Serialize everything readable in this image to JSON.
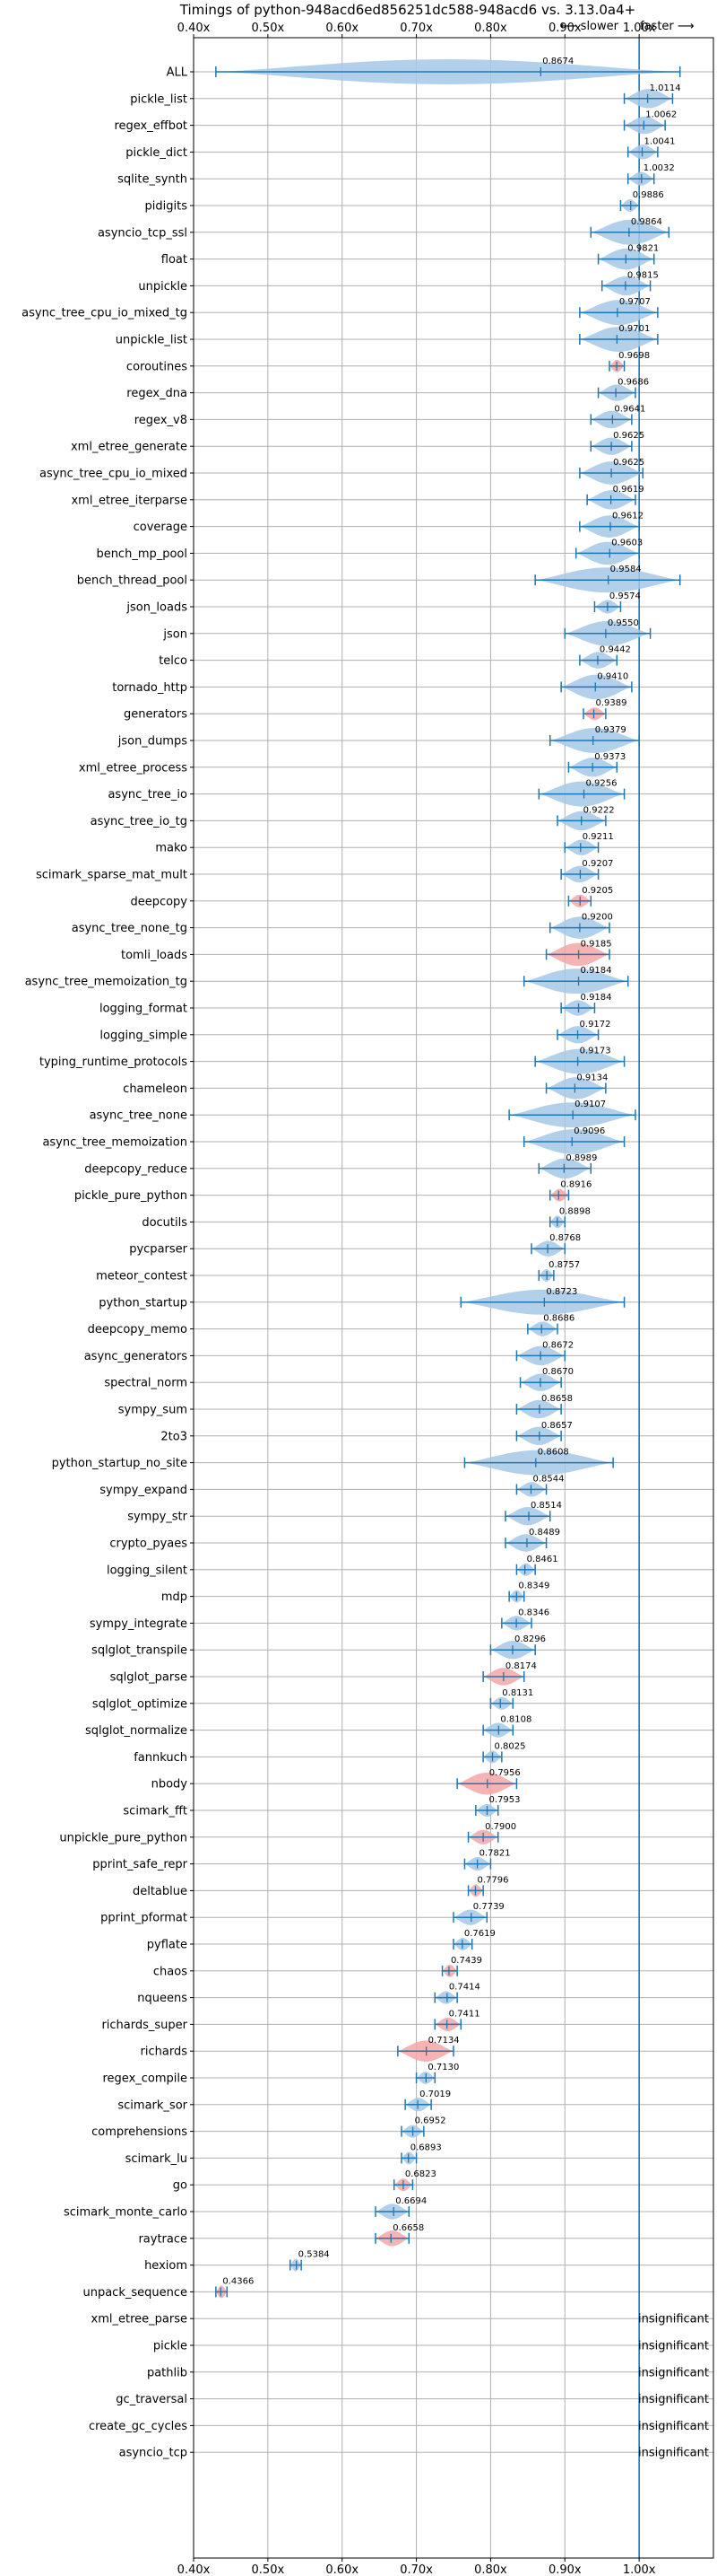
{
  "chart_data": {
    "type": "violin",
    "title": "Timings of python-948acd6ed856251dc588-948acd6 vs. 3.13.0a4+",
    "annotation_slower": "⟵ slower",
    "annotation_faster": "faster ⟶",
    "xlim": [
      0.4,
      1.1
    ],
    "x_ticks": [
      0.4,
      0.5,
      0.6,
      0.7,
      0.8,
      0.9,
      1.0
    ],
    "x_tick_labels": [
      "0.40x",
      "0.50x",
      "0.60x",
      "0.70x",
      "0.80x",
      "0.90x",
      "1.00x"
    ],
    "reference_line": 1.0,
    "grid": true,
    "colors": {
      "violin": "#a6c8e6",
      "violin_significant": "#f4a6a6",
      "whisker": "#1f77b4",
      "grid": "#b0b0b0"
    },
    "insignificant_label": "insignificant",
    "benchmarks": [
      {
        "name": "ALL",
        "geomean": 0.8674,
        "min": 0.43,
        "max": 1.055,
        "label": "0.8674"
      },
      {
        "name": "pickle_list",
        "geomean": 1.0114,
        "min": 0.98,
        "max": 1.045,
        "label": "1.0114"
      },
      {
        "name": "regex_effbot",
        "geomean": 1.0062,
        "min": 0.98,
        "max": 1.035,
        "label": "1.0062"
      },
      {
        "name": "pickle_dict",
        "geomean": 1.0041,
        "min": 0.985,
        "max": 1.025,
        "label": "1.0041"
      },
      {
        "name": "sqlite_synth",
        "geomean": 1.0032,
        "min": 0.985,
        "max": 1.02,
        "label": "1.0032"
      },
      {
        "name": "pidigits",
        "geomean": 0.9886,
        "min": 0.975,
        "max": 1.0,
        "label": "0.9886"
      },
      {
        "name": "asyncio_tcp_ssl",
        "geomean": 0.9864,
        "min": 0.935,
        "max": 1.04,
        "label": "0.9864"
      },
      {
        "name": "float",
        "geomean": 0.9821,
        "min": 0.945,
        "max": 1.02,
        "label": "0.9821"
      },
      {
        "name": "unpickle",
        "geomean": 0.9815,
        "min": 0.95,
        "max": 1.015,
        "label": "0.9815"
      },
      {
        "name": "async_tree_cpu_io_mixed_tg",
        "geomean": 0.9707,
        "min": 0.92,
        "max": 1.025,
        "label": "0.9707"
      },
      {
        "name": "unpickle_list",
        "geomean": 0.9701,
        "min": 0.92,
        "max": 1.025,
        "label": "0.9701"
      },
      {
        "name": "coroutines",
        "geomean": 0.9698,
        "min": 0.96,
        "max": 0.98,
        "label": "0.9698",
        "significant": true
      },
      {
        "name": "regex_dna",
        "geomean": 0.9686,
        "min": 0.945,
        "max": 0.995,
        "label": "0.9686"
      },
      {
        "name": "regex_v8",
        "geomean": 0.9641,
        "min": 0.935,
        "max": 0.99,
        "label": "0.9641"
      },
      {
        "name": "xml_etree_generate",
        "geomean": 0.9625,
        "min": 0.935,
        "max": 0.99,
        "label": "0.9625"
      },
      {
        "name": "async_tree_cpu_io_mixed",
        "geomean": 0.9625,
        "min": 0.92,
        "max": 1.005,
        "label": "0.9625"
      },
      {
        "name": "xml_etree_iterparse",
        "geomean": 0.9619,
        "min": 0.93,
        "max": 0.995,
        "label": "0.9619"
      },
      {
        "name": "coverage",
        "geomean": 0.9612,
        "min": 0.92,
        "max": 1.0,
        "label": "0.9612"
      },
      {
        "name": "bench_mp_pool",
        "geomean": 0.9603,
        "min": 0.915,
        "max": 1.0,
        "label": "0.9603"
      },
      {
        "name": "bench_thread_pool",
        "geomean": 0.9584,
        "min": 0.86,
        "max": 1.055,
        "label": "0.9584"
      },
      {
        "name": "json_loads",
        "geomean": 0.9574,
        "min": 0.94,
        "max": 0.975,
        "label": "0.9574"
      },
      {
        "name": "json",
        "geomean": 0.955,
        "min": 0.9,
        "max": 1.015,
        "label": "0.9550"
      },
      {
        "name": "telco",
        "geomean": 0.9442,
        "min": 0.92,
        "max": 0.97,
        "label": "0.9442"
      },
      {
        "name": "tornado_http",
        "geomean": 0.941,
        "min": 0.895,
        "max": 0.99,
        "label": "0.9410"
      },
      {
        "name": "generators",
        "geomean": 0.9389,
        "min": 0.925,
        "max": 0.955,
        "label": "0.9389",
        "significant": true
      },
      {
        "name": "json_dumps",
        "geomean": 0.9379,
        "min": 0.88,
        "max": 1.0,
        "label": "0.9379"
      },
      {
        "name": "xml_etree_process",
        "geomean": 0.9373,
        "min": 0.905,
        "max": 0.97,
        "label": "0.9373"
      },
      {
        "name": "async_tree_io",
        "geomean": 0.9256,
        "min": 0.865,
        "max": 0.98,
        "label": "0.9256"
      },
      {
        "name": "async_tree_io_tg",
        "geomean": 0.9222,
        "min": 0.89,
        "max": 0.955,
        "label": "0.9222"
      },
      {
        "name": "mako",
        "geomean": 0.9211,
        "min": 0.9,
        "max": 0.945,
        "label": "0.9211"
      },
      {
        "name": "scimark_sparse_mat_mult",
        "geomean": 0.9207,
        "min": 0.895,
        "max": 0.945,
        "label": "0.9207"
      },
      {
        "name": "deepcopy",
        "geomean": 0.9205,
        "min": 0.905,
        "max": 0.935,
        "label": "0.9205",
        "significant": true
      },
      {
        "name": "async_tree_none_tg",
        "geomean": 0.92,
        "min": 0.88,
        "max": 0.96,
        "label": "0.9200"
      },
      {
        "name": "tomli_loads",
        "geomean": 0.9185,
        "min": 0.875,
        "max": 0.96,
        "label": "0.9185",
        "significant": true
      },
      {
        "name": "async_tree_memoization_tg",
        "geomean": 0.9184,
        "min": 0.845,
        "max": 0.985,
        "label": "0.9184"
      },
      {
        "name": "logging_format",
        "geomean": 0.9184,
        "min": 0.895,
        "max": 0.94,
        "label": "0.9184"
      },
      {
        "name": "logging_simple",
        "geomean": 0.9172,
        "min": 0.89,
        "max": 0.945,
        "label": "0.9172"
      },
      {
        "name": "typing_runtime_protocols",
        "geomean": 0.9173,
        "min": 0.86,
        "max": 0.98,
        "label": "0.9173"
      },
      {
        "name": "chameleon",
        "geomean": 0.9134,
        "min": 0.875,
        "max": 0.955,
        "label": "0.9134"
      },
      {
        "name": "async_tree_none",
        "geomean": 0.9107,
        "min": 0.825,
        "max": 0.995,
        "label": "0.9107"
      },
      {
        "name": "async_tree_memoization",
        "geomean": 0.9096,
        "min": 0.845,
        "max": 0.98,
        "label": "0.9096"
      },
      {
        "name": "deepcopy_reduce",
        "geomean": 0.8989,
        "min": 0.865,
        "max": 0.935,
        "label": "0.8989"
      },
      {
        "name": "pickle_pure_python",
        "geomean": 0.8916,
        "min": 0.88,
        "max": 0.905,
        "label": "0.8916",
        "significant": true
      },
      {
        "name": "docutils",
        "geomean": 0.8898,
        "min": 0.88,
        "max": 0.9,
        "label": "0.8898"
      },
      {
        "name": "pycparser",
        "geomean": 0.8768,
        "min": 0.855,
        "max": 0.9,
        "label": "0.8768"
      },
      {
        "name": "meteor_contest",
        "geomean": 0.8757,
        "min": 0.865,
        "max": 0.885,
        "label": "0.8757"
      },
      {
        "name": "python_startup",
        "geomean": 0.8723,
        "min": 0.76,
        "max": 0.98,
        "label": "0.8723"
      },
      {
        "name": "deepcopy_memo",
        "geomean": 0.8686,
        "min": 0.85,
        "max": 0.89,
        "label": "0.8686"
      },
      {
        "name": "async_generators",
        "geomean": 0.8672,
        "min": 0.835,
        "max": 0.9,
        "label": "0.8672"
      },
      {
        "name": "spectral_norm",
        "geomean": 0.867,
        "min": 0.84,
        "max": 0.895,
        "label": "0.8670"
      },
      {
        "name": "sympy_sum",
        "geomean": 0.8658,
        "min": 0.835,
        "max": 0.895,
        "label": "0.8658"
      },
      {
        "name": "2to3",
        "geomean": 0.8657,
        "min": 0.835,
        "max": 0.895,
        "label": "0.8657"
      },
      {
        "name": "python_startup_no_site",
        "geomean": 0.8608,
        "min": 0.765,
        "max": 0.965,
        "label": "0.8608"
      },
      {
        "name": "sympy_expand",
        "geomean": 0.8544,
        "min": 0.835,
        "max": 0.875,
        "label": "0.8544"
      },
      {
        "name": "sympy_str",
        "geomean": 0.8514,
        "min": 0.82,
        "max": 0.88,
        "label": "0.8514"
      },
      {
        "name": "crypto_pyaes",
        "geomean": 0.8489,
        "min": 0.82,
        "max": 0.875,
        "label": "0.8489"
      },
      {
        "name": "logging_silent",
        "geomean": 0.8461,
        "min": 0.835,
        "max": 0.86,
        "label": "0.8461"
      },
      {
        "name": "mdp",
        "geomean": 0.8349,
        "min": 0.825,
        "max": 0.845,
        "label": "0.8349"
      },
      {
        "name": "sympy_integrate",
        "geomean": 0.8346,
        "min": 0.815,
        "max": 0.855,
        "label": "0.8346"
      },
      {
        "name": "sqlglot_transpile",
        "geomean": 0.8296,
        "min": 0.8,
        "max": 0.86,
        "label": "0.8296"
      },
      {
        "name": "sqlglot_parse",
        "geomean": 0.8174,
        "min": 0.79,
        "max": 0.845,
        "label": "0.8174",
        "significant": true
      },
      {
        "name": "sqlglot_optimize",
        "geomean": 0.8131,
        "min": 0.8,
        "max": 0.83,
        "label": "0.8131"
      },
      {
        "name": "sqlglot_normalize",
        "geomean": 0.8108,
        "min": 0.79,
        "max": 0.83,
        "label": "0.8108"
      },
      {
        "name": "fannkuch",
        "geomean": 0.8025,
        "min": 0.79,
        "max": 0.815,
        "label": "0.8025"
      },
      {
        "name": "nbody",
        "geomean": 0.7956,
        "min": 0.755,
        "max": 0.835,
        "label": "0.7956",
        "significant": true
      },
      {
        "name": "scimark_fft",
        "geomean": 0.7953,
        "min": 0.78,
        "max": 0.81,
        "label": "0.7953"
      },
      {
        "name": "unpickle_pure_python",
        "geomean": 0.79,
        "min": 0.77,
        "max": 0.81,
        "label": "0.7900",
        "significant": true
      },
      {
        "name": "pprint_safe_repr",
        "geomean": 0.7821,
        "min": 0.765,
        "max": 0.8,
        "label": "0.7821"
      },
      {
        "name": "deltablue",
        "geomean": 0.7796,
        "min": 0.77,
        "max": 0.79,
        "label": "0.7796",
        "significant": true
      },
      {
        "name": "pprint_pformat",
        "geomean": 0.7739,
        "min": 0.75,
        "max": 0.795,
        "label": "0.7739"
      },
      {
        "name": "pyflate",
        "geomean": 0.7619,
        "min": 0.75,
        "max": 0.775,
        "label": "0.7619"
      },
      {
        "name": "chaos",
        "geomean": 0.7439,
        "min": 0.735,
        "max": 0.755,
        "label": "0.7439",
        "significant": true
      },
      {
        "name": "nqueens",
        "geomean": 0.7414,
        "min": 0.725,
        "max": 0.755,
        "label": "0.7414"
      },
      {
        "name": "richards_super",
        "geomean": 0.7411,
        "min": 0.725,
        "max": 0.76,
        "label": "0.7411",
        "significant": true
      },
      {
        "name": "richards",
        "geomean": 0.7134,
        "min": 0.675,
        "max": 0.75,
        "label": "0.7134",
        "significant": true
      },
      {
        "name": "regex_compile",
        "geomean": 0.713,
        "min": 0.7,
        "max": 0.725,
        "label": "0.7130"
      },
      {
        "name": "scimark_sor",
        "geomean": 0.7019,
        "min": 0.685,
        "max": 0.72,
        "label": "0.7019"
      },
      {
        "name": "comprehensions",
        "geomean": 0.6952,
        "min": 0.68,
        "max": 0.71,
        "label": "0.6952"
      },
      {
        "name": "scimark_lu",
        "geomean": 0.6893,
        "min": 0.68,
        "max": 0.7,
        "label": "0.6893"
      },
      {
        "name": "go",
        "geomean": 0.6823,
        "min": 0.67,
        "max": 0.695,
        "label": "0.6823",
        "significant": true
      },
      {
        "name": "scimark_monte_carlo",
        "geomean": 0.6694,
        "min": 0.645,
        "max": 0.69,
        "label": "0.6694"
      },
      {
        "name": "raytrace",
        "geomean": 0.6658,
        "min": 0.645,
        "max": 0.69,
        "label": "0.6658",
        "significant": true
      },
      {
        "name": "hexiom",
        "geomean": 0.5384,
        "min": 0.53,
        "max": 0.545,
        "label": "0.5384"
      },
      {
        "name": "unpack_sequence",
        "geomean": 0.4366,
        "min": 0.43,
        "max": 0.445,
        "label": "0.4366",
        "significant": true
      },
      {
        "name": "xml_etree_parse",
        "insignificant": true
      },
      {
        "name": "pickle",
        "insignificant": true
      },
      {
        "name": "pathlib",
        "insignificant": true
      },
      {
        "name": "gc_traversal",
        "insignificant": true
      },
      {
        "name": "create_gc_cycles",
        "insignificant": true
      },
      {
        "name": "asyncio_tcp",
        "insignificant": true
      }
    ]
  }
}
